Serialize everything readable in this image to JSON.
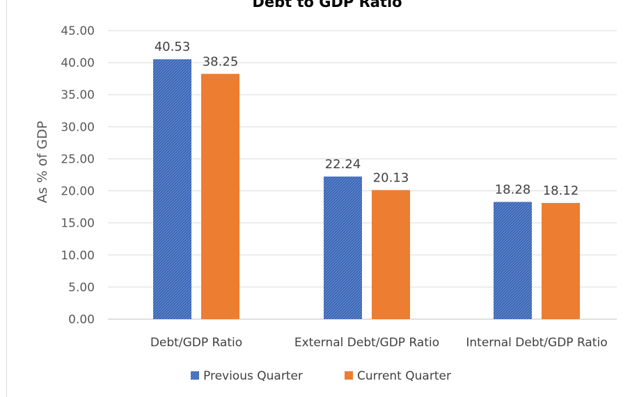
{
  "chart_data": {
    "type": "bar",
    "title": "Debt to GDP Ratio",
    "xlabel": "",
    "ylabel": "As % of GDP",
    "ylim": [
      0,
      45
    ],
    "yticks": [
      "0.00",
      "5.00",
      "10.00",
      "15.00",
      "20.00",
      "25.00",
      "30.00",
      "35.00",
      "40.00",
      "45.00"
    ],
    "categories": [
      "Debt/GDP Ratio",
      "External Debt/GDP Ratio",
      "Internal Debt/GDP Ratio"
    ],
    "series": [
      {
        "name": "Previous Quarter",
        "values": [
          40.53,
          22.24,
          18.28
        ],
        "labels": [
          "40.53",
          "22.24",
          "18.28"
        ],
        "color": "#4472c4",
        "pattern": "diagonal-hatch"
      },
      {
        "name": "Current Quarter",
        "values": [
          38.25,
          20.13,
          18.12
        ],
        "labels": [
          "38.25",
          "20.13",
          "18.12"
        ],
        "color": "#ed7d31",
        "pattern": "solid"
      }
    ],
    "grid": true,
    "legend_position": "bottom"
  }
}
